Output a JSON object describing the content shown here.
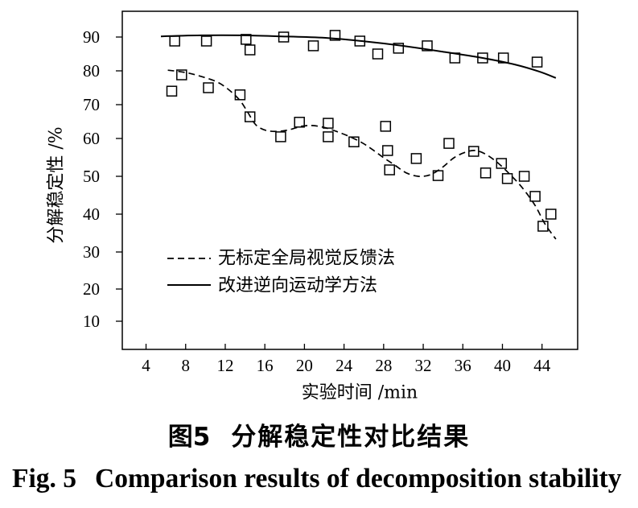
{
  "chart_data": {
    "type": "line",
    "xlabel": "实验时间 /min",
    "ylabel": "分解稳定性 /%",
    "xlim": [
      1.6,
      47.6
    ],
    "ylim": [
      1.3,
      97.6
    ],
    "xticks": [
      4,
      8,
      12,
      16,
      20,
      24,
      28,
      32,
      36,
      40,
      44
    ],
    "yticks": [
      10,
      20,
      30,
      40,
      50,
      60,
      70,
      80,
      90
    ],
    "grid": false,
    "legend_position": "lower-left",
    "series": [
      {
        "name": "无标定全局视觉反馈法",
        "line_style": "dashed",
        "marker": "none",
        "color": "#000000",
        "x": [
          6.2,
          8.0,
          9.6,
          11.2,
          12.4,
          13.5,
          14.3,
          15.1,
          16.1,
          17.3,
          18.5,
          19.7,
          20.9,
          22.2,
          23.4,
          24.6,
          25.8,
          26.8,
          27.9,
          29.1,
          30.3,
          31.5,
          32.7,
          33.9,
          35.1,
          36.3,
          37.3,
          38.4,
          39.6,
          40.8,
          42.0,
          43.3,
          44.3,
          45.4
        ],
        "y": [
          80.2,
          79.5,
          78.3,
          76.7,
          74.3,
          71.2,
          67.6,
          64.0,
          62.4,
          62.1,
          62.6,
          63.6,
          63.8,
          63.1,
          61.9,
          60.5,
          58.9,
          57.2,
          55.1,
          53.0,
          50.9,
          50.0,
          50.4,
          52.3,
          54.9,
          56.4,
          56.8,
          55.7,
          53.4,
          50.4,
          47.0,
          42.3,
          37.4,
          33.4
        ]
      },
      {
        "name": "改进逆向运动学方法",
        "line_style": "solid",
        "marker": "none",
        "color": "#000000",
        "x": [
          5.5,
          9.6,
          13.7,
          17.7,
          21.8,
          25.8,
          29.9,
          33.9,
          38.0,
          41.2,
          43.7,
          45.4
        ],
        "y": [
          90.2,
          90.5,
          90.5,
          90.2,
          89.8,
          88.8,
          87.4,
          85.7,
          83.8,
          81.9,
          79.8,
          77.9
        ]
      },
      {
        "line_style": "none",
        "marker": "square",
        "color": "#000000",
        "x": [
          6.9,
          10.1,
          14.1,
          14.5,
          17.9,
          20.9,
          23.1,
          25.6,
          27.4,
          29.5,
          32.4,
          35.2,
          38.0,
          40.1,
          43.5
        ],
        "y": [
          88.8,
          88.8,
          89.3,
          86.2,
          90.0,
          87.4,
          90.5,
          88.8,
          85.0,
          86.7,
          87.4,
          83.8,
          83.8,
          83.8,
          82.6
        ]
      },
      {
        "line_style": "none",
        "marker": "square",
        "color": "#000000",
        "x": [
          6.6,
          7.6,
          10.3,
          13.5,
          14.5,
          17.6,
          19.5,
          22.4,
          22.4,
          25.0,
          28.2,
          28.4,
          28.6,
          31.3,
          33.5,
          34.6,
          37.1,
          38.3,
          39.9,
          40.5,
          42.2,
          43.3,
          44.1,
          44.9
        ],
        "y": [
          74.0,
          78.8,
          75.0,
          72.9,
          66.4,
          60.5,
          64.8,
          64.5,
          60.5,
          59.1,
          63.6,
          56.8,
          51.7,
          54.7,
          50.2,
          58.7,
          56.6,
          50.9,
          53.4,
          49.4,
          50.0,
          44.7,
          36.8,
          40.0
        ]
      }
    ]
  },
  "caption": {
    "cn_label": "图5",
    "cn_text": "分解稳定性对比结果",
    "en_label": "Fig. 5",
    "en_text": "Comparison results of decomposition stability"
  }
}
